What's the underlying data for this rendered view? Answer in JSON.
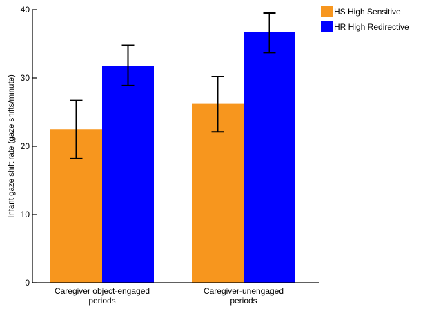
{
  "chart_data": {
    "type": "bar",
    "categories": [
      [
        "Caregiver object-engaged",
        "periods"
      ],
      [
        "Caregiver-unengaged",
        "periods"
      ]
    ],
    "series": [
      {
        "name": "HS High Sensitive",
        "color": "#F7961E",
        "values": [
          22.5,
          26.2
        ],
        "err_low": [
          18.2,
          22.1
        ],
        "err_high": [
          26.7,
          30.2
        ]
      },
      {
        "name": "HR High Redirective",
        "color": "#0000FF",
        "values": [
          31.8,
          36.7
        ],
        "err_low": [
          28.9,
          33.7
        ],
        "err_high": [
          34.8,
          39.5
        ]
      }
    ],
    "title": "",
    "xlabel": "",
    "ylabel": "Infant gaze shift rate (gaze shifts/minute)",
    "ylim": [
      0,
      40
    ],
    "yticks": [
      "0",
      "10",
      "20",
      "30",
      "40"
    ],
    "grid": false,
    "legend": "top-right"
  }
}
